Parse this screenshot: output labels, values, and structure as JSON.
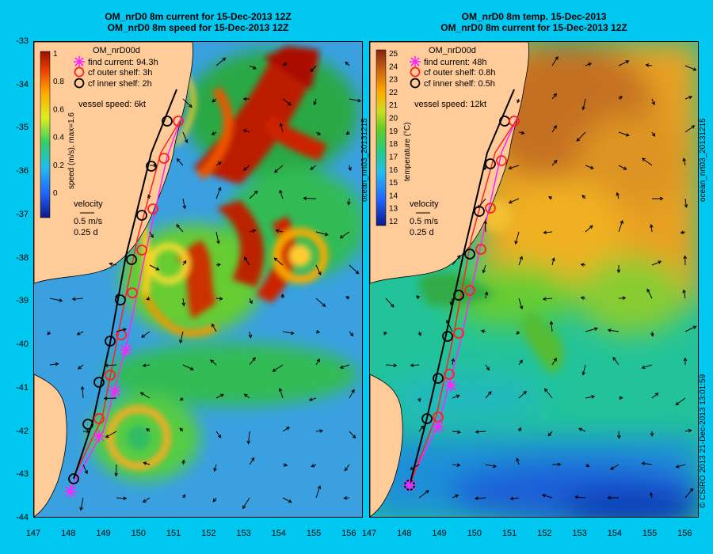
{
  "left_panel": {
    "title_line1": "OM_nrD0 8m current for 15-Dec-2013 12Z",
    "title_line2": "OM_nrD0 8m speed for 15-Dec-2013 12Z",
    "model_name": "OM_nrD00d",
    "legend": [
      {
        "label": "find current: 94.3h",
        "symbol": "asterisk",
        "color": "#ff22ff"
      },
      {
        "label": "cf outer shelf: 3h",
        "symbol": "circle",
        "color": "#ff2020"
      },
      {
        "label": "cf inner shelf: 2h",
        "symbol": "circle",
        "color": "#000000"
      }
    ],
    "vessel_speed": "vessel speed: 6kt",
    "colorbar_title": "speed (m/s), max=1.6",
    "colorbar_ticks": [
      "1",
      "0.8",
      "0.6",
      "0.4",
      "0.2",
      "0"
    ],
    "velocity_label": "velocity",
    "velocity_scale": "0.5 m/s",
    "velocity_time": "0.25 d",
    "side_label": "ocean_nrt03_20131215"
  },
  "right_panel": {
    "title_line1": "OM_nrD0 8m temp. 15-Dec-2013",
    "title_line2": "OM_nrD0 8m current for 15-Dec-2013 12Z",
    "model_name": "OM_nrD00d",
    "legend": [
      {
        "label": "find current: 48h",
        "symbol": "asterisk",
        "color": "#ff22ff"
      },
      {
        "label": "cf outer shelf: 0.8h",
        "symbol": "circle",
        "color": "#ff2020"
      },
      {
        "label": "cf inner shelf: 0.5h",
        "symbol": "circle",
        "color": "#000000"
      }
    ],
    "vessel_speed": "vessel speed: 12kt",
    "colorbar_title": "temperature (°C)",
    "colorbar_ticks": [
      "25",
      "24",
      "23",
      "22",
      "21",
      "20",
      "19",
      "18",
      "17",
      "16",
      "15",
      "14",
      "13",
      "12"
    ],
    "velocity_label": "velocity",
    "velocity_scale": "0.5 m/s",
    "velocity_time": "0.25 d",
    "side_label": "ocean_nrt03_20131215",
    "copyright": "© CSIRO 2013   21-Dec-2013 13:01:59"
  },
  "lat_ticks": [
    "-33",
    "-34",
    "-35",
    "-36",
    "-37",
    "-38",
    "-39",
    "-40",
    "-41",
    "-42",
    "-43",
    "-44"
  ],
  "lon_ticks": [
    "147",
    "148",
    "149",
    "150",
    "151",
    "152",
    "153",
    "154",
    "155",
    "156"
  ],
  "map_extent": {
    "lon_min": 147,
    "lon_max": 156.4,
    "lat_min": -44,
    "lat_max": -33
  },
  "colors": {
    "background": "#00c8f0",
    "land": "#ffcc99",
    "magenta": "#ff22ff",
    "red": "#ff2020"
  }
}
